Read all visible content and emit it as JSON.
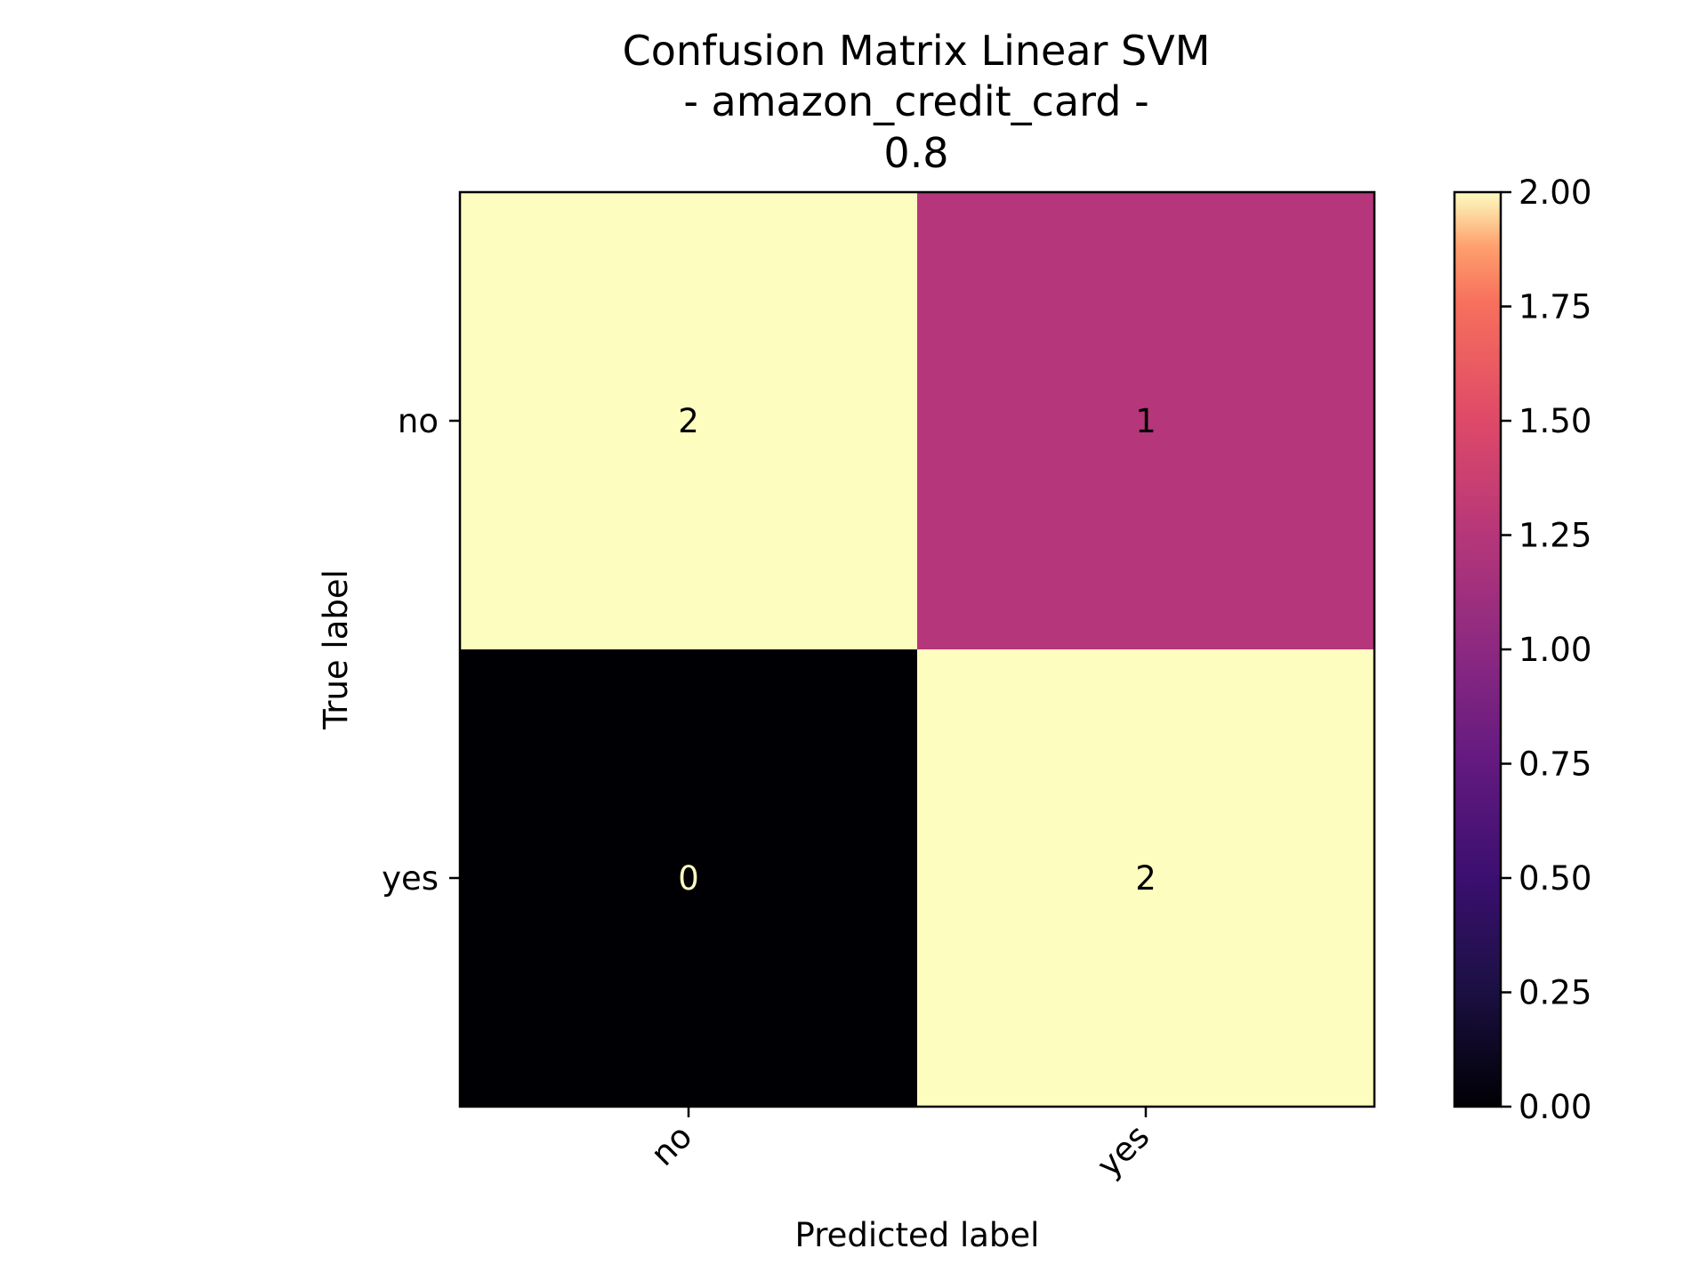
{
  "chart_data": {
    "type": "heatmap",
    "title_lines": [
      "Confusion Matrix Linear SVM",
      "- amazon_credit_card -",
      "0.8"
    ],
    "xlabel": "Predicted label",
    "ylabel": "True label",
    "x_categories": [
      "no",
      "yes"
    ],
    "y_categories": [
      "no",
      "yes"
    ],
    "matrix": [
      [
        2,
        1
      ],
      [
        0,
        2
      ]
    ],
    "colormap": "magma",
    "colorbar": {
      "range": [
        0.0,
        2.0
      ],
      "ticks": [
        "0.00",
        "0.25",
        "0.50",
        "0.75",
        "1.00",
        "1.25",
        "1.50",
        "1.75",
        "2.00"
      ]
    },
    "colors": {
      "low": "#000004",
      "mid": "#b5367a",
      "high": "#fcfdbf",
      "text_on_light": "#000000",
      "text_on_dark": "#fcfdbf"
    }
  }
}
